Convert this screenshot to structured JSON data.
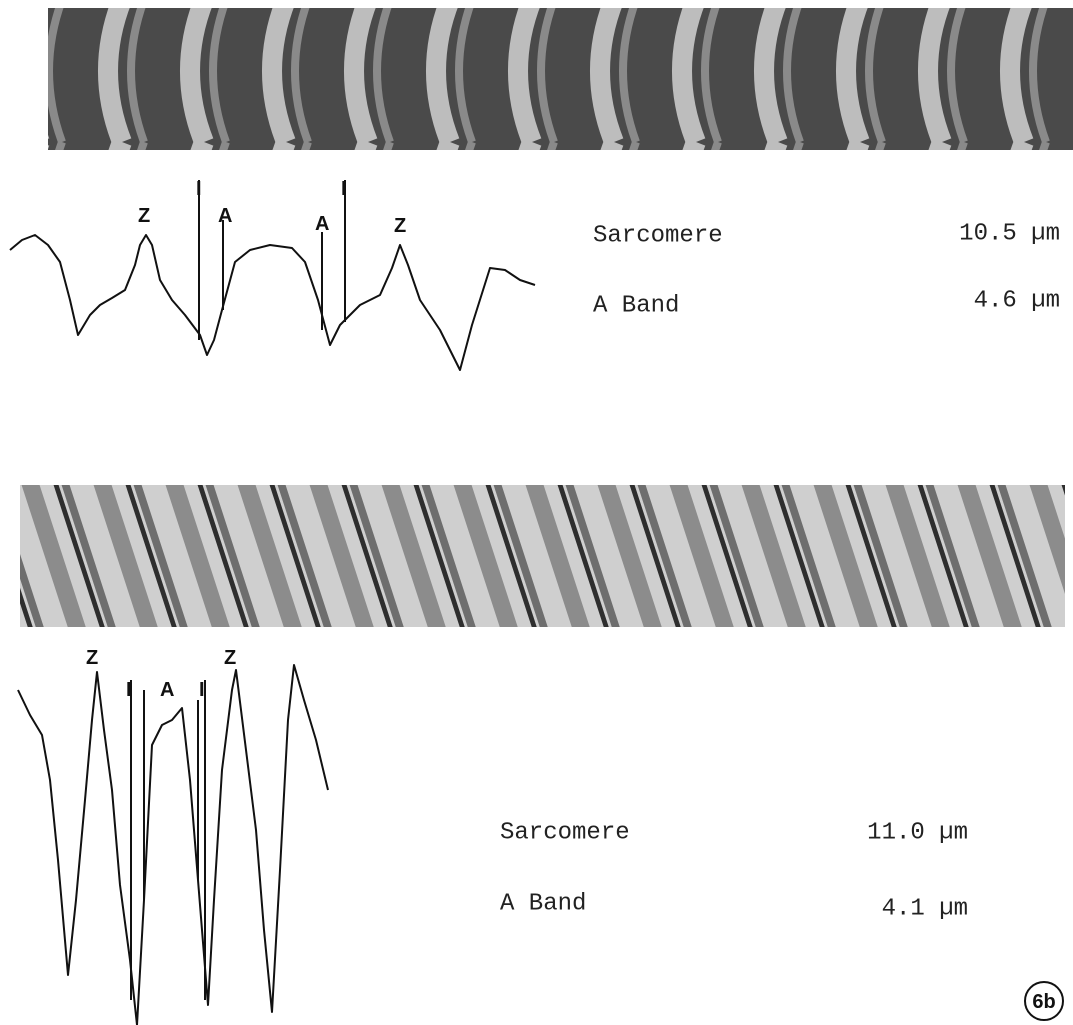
{
  "panel_top": {
    "trace_labels": [
      "Z",
      "I",
      "A",
      "A",
      "I",
      "Z"
    ],
    "measurements": [
      {
        "label": "Sarcomere",
        "value": "10.5 µm"
      },
      {
        "label": "A Band",
        "value": "4.6 µm"
      }
    ]
  },
  "panel_bottom": {
    "trace_labels": [
      "Z",
      "I",
      "A",
      "I",
      "Z"
    ],
    "measurements": [
      {
        "label": "Sarcomere",
        "value": "11.0 µm"
      },
      {
        "label": "A Band",
        "value": "4.1 µm"
      }
    ]
  },
  "figure_label": "6b"
}
